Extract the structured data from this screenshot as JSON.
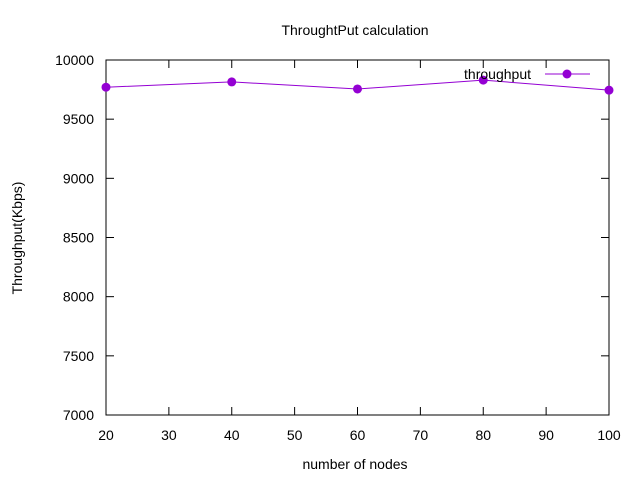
{
  "chart_data": {
    "type": "line",
    "title": "ThroughtPut calculation",
    "xlabel": "number of nodes",
    "ylabel": "Throughput(Kbps)",
    "xlim": [
      20,
      100
    ],
    "ylim": [
      7000,
      10000
    ],
    "xticks": [
      20,
      30,
      40,
      50,
      60,
      70,
      80,
      90,
      100
    ],
    "yticks": [
      7000,
      7500,
      8000,
      8500,
      9000,
      9500,
      10000
    ],
    "grid": false,
    "legend_position": "top-right",
    "series": [
      {
        "name": "throughput",
        "color": "#9400d3",
        "marker": "circle",
        "x": [
          20,
          40,
          60,
          80,
          100
        ],
        "y": [
          9770,
          9815,
          9755,
          9830,
          9745
        ]
      }
    ]
  }
}
